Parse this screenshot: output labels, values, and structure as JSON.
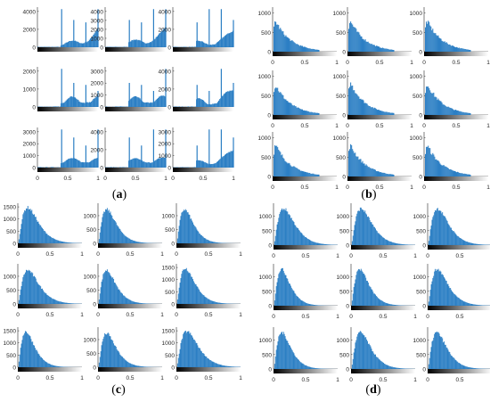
{
  "colors": {
    "bar": "#2c7fc4",
    "axis": "#262626",
    "background": "#ffffff"
  },
  "panels": [
    {
      "id": "a",
      "label_open": "(",
      "label_letter": "a",
      "label_close": ")",
      "kind": "spiky",
      "xticks": [
        "0",
        "0.5",
        "1"
      ],
      "rows": [
        {
          "yticks": [
            "0",
            "2000",
            "4000"
          ],
          "ymax": 4600
        },
        {
          "yticks": [
            "0",
            "1000",
            "2000",
            "3000"
          ],
          "ymax": 3100
        },
        {
          "yticks": [
            "0",
            "1000",
            "2000",
            "3000"
          ],
          "ymax": 3300
        }
      ],
      "row_yticks_by_col": [
        [
          [
            "0",
            "2000",
            "4000"
          ],
          [
            "0",
            "1000",
            "2000",
            "3000",
            "4000"
          ],
          [
            "0",
            "2000",
            "4000"
          ]
        ],
        [
          [
            "0",
            "1000",
            "2000"
          ],
          [
            "0",
            "1000",
            "2000",
            "3000"
          ],
          [
            "0",
            "2000",
            "4000"
          ]
        ],
        [
          [
            "0",
            "1000",
            "2000",
            "3000"
          ],
          [
            "0",
            "2000",
            "4000"
          ],
          [
            "0",
            "1000",
            "2000",
            "3000"
          ]
        ]
      ]
    },
    {
      "id": "b",
      "label_open": "(",
      "label_letter": "b",
      "label_close": ")",
      "kind": "decay",
      "xticks": [
        "0",
        "0.5",
        "1"
      ],
      "yticks": [
        "0",
        "500",
        "1000"
      ]
    },
    {
      "id": "c",
      "label_open": "(",
      "label_letter": "c",
      "label_close": ")",
      "kind": "skewed",
      "xticks": [
        "0",
        "0.5",
        "1"
      ],
      "row_yticks_by_col": [
        [
          [
            "0",
            "500",
            "1000",
            "1500"
          ],
          [
            "0",
            "500",
            "1000"
          ],
          [
            "0",
            "500",
            "1000"
          ]
        ],
        [
          [
            "0",
            "500",
            "1000"
          ],
          [
            "0",
            "500",
            "1000"
          ],
          [
            "0",
            "500",
            "1000",
            "1500"
          ]
        ],
        [
          [
            "0",
            "500",
            "1000",
            "1500"
          ],
          [
            "0",
            "500",
            "1000"
          ],
          [
            "0",
            "500",
            "1000",
            "1500"
          ]
        ]
      ]
    },
    {
      "id": "d",
      "label_open": "(",
      "label_letter": "d",
      "label_close": ")",
      "kind": "skewed",
      "xticks": [
        "0",
        "0.5",
        "1"
      ],
      "row_yticks_by_col": [
        [
          [
            "0",
            "500",
            "1000"
          ],
          [
            "0",
            "500",
            "1000"
          ],
          [
            "0",
            "500",
            "1000"
          ]
        ],
        [
          [
            "0",
            "500",
            "1000"
          ],
          [
            "0",
            "500",
            "1000"
          ],
          [
            "0",
            "500",
            "1000"
          ]
        ],
        [
          [
            "0",
            "500",
            "1000"
          ],
          [
            "0",
            "500",
            "1000"
          ],
          [
            "0",
            "500",
            "1000"
          ]
        ]
      ]
    }
  ],
  "chart_data": [
    {
      "type": "bar",
      "title": "(a)",
      "description_of_series": "3x3 grid of gray-level histograms with sharp spikes",
      "x_range": [
        0,
        1
      ],
      "spike_positions": [
        0.4,
        0.6,
        0.8,
        1.0
      ],
      "grid": false
    },
    {
      "type": "bar",
      "title": "(b)",
      "x_range": [
        0,
        1
      ],
      "y_range": [
        0,
        1000
      ],
      "peak_x": 0.03,
      "grid": false
    },
    {
      "type": "bar",
      "title": "(c)",
      "x_range": [
        0,
        1
      ],
      "y_range": [
        0,
        1500
      ],
      "peak_x": 0.15,
      "grid": false
    },
    {
      "type": "bar",
      "title": "(d)",
      "x_range": [
        0,
        1
      ],
      "y_range": [
        0,
        1300
      ],
      "peak_x": 0.15,
      "grid": false
    }
  ]
}
